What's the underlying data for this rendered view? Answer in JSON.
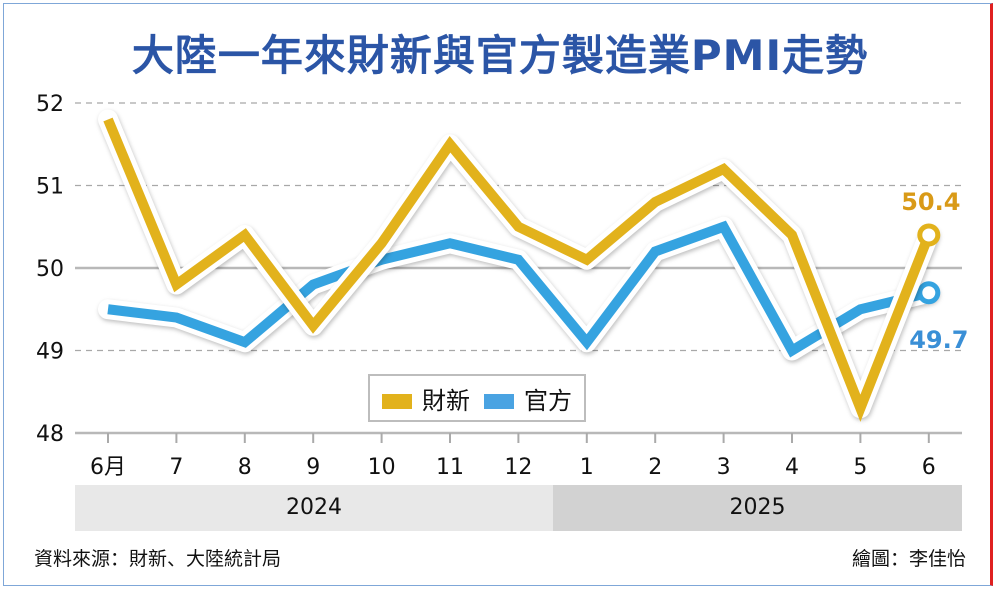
{
  "title": "大陸一年來財新與官方製造業PMI走勢",
  "chart_data": {
    "type": "line",
    "title": "大陸一年來財新與官方製造業PMI走勢",
    "categories": [
      "6月",
      "7",
      "8",
      "9",
      "10",
      "11",
      "12",
      "1",
      "2",
      "3",
      "4",
      "5",
      "6"
    ],
    "years": [
      {
        "label": "2024",
        "span": 7
      },
      {
        "label": "2025",
        "span": 6
      }
    ],
    "yticks": [
      52,
      51,
      50,
      49,
      48
    ],
    "ylim": [
      48,
      52
    ],
    "series": [
      {
        "name": "財新",
        "color": "#e2b21c",
        "values": [
          51.8,
          49.8,
          50.4,
          49.3,
          50.3,
          51.5,
          50.5,
          50.1,
          50.8,
          51.2,
          50.4,
          48.3,
          50.4
        ],
        "last_label": "50.4",
        "label_color": "#d99a17"
      },
      {
        "name": "官方",
        "color": "#35a3e0",
        "values": [
          49.5,
          49.4,
          49.1,
          49.8,
          50.1,
          50.3,
          50.1,
          49.1,
          50.2,
          50.5,
          49.0,
          49.5,
          49.7
        ],
        "last_label": "49.7",
        "label_color": "#3a8fd6"
      }
    ],
    "legend": "bottom-center"
  },
  "footer": {
    "source": "資料來源：財新、大陸統計局",
    "author": "繪圖：李佳怡"
  }
}
